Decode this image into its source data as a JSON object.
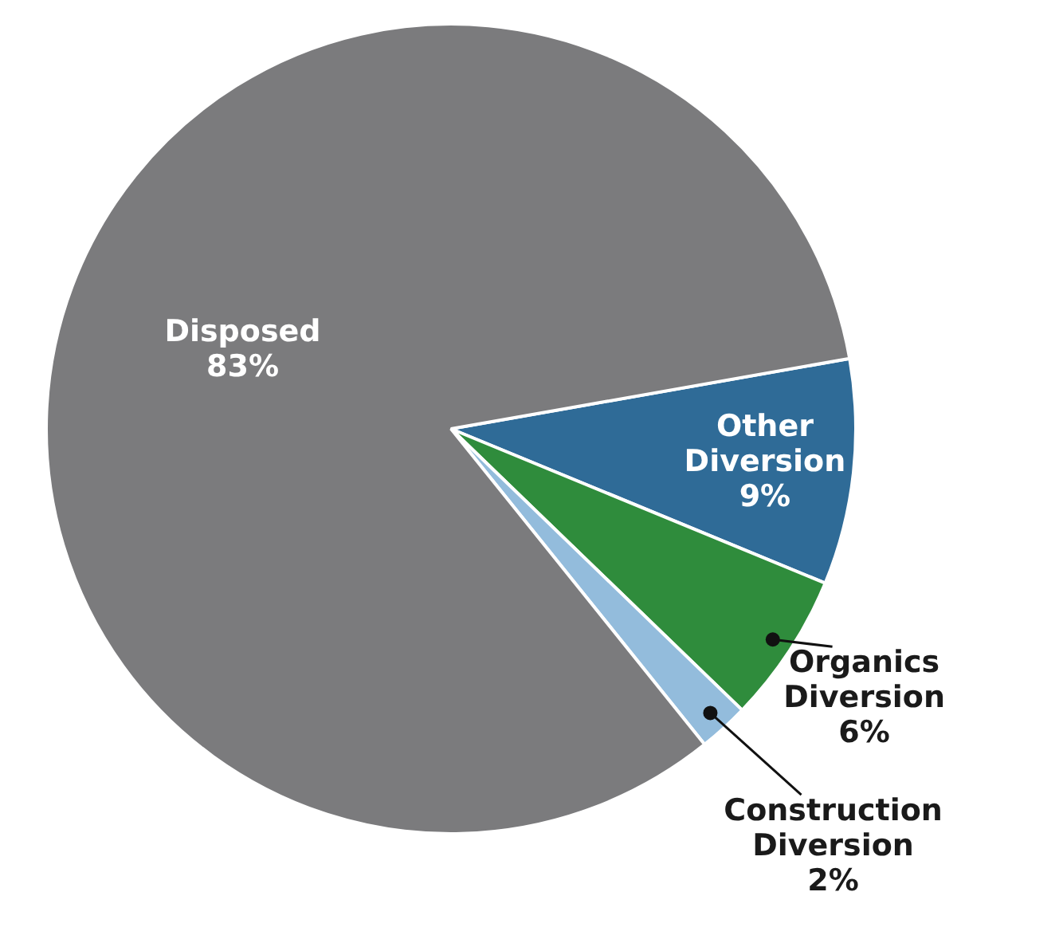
{
  "chart_data": {
    "type": "pie",
    "categories": [
      "Other Diversion",
      "Organics Diversion",
      "Construction Diversion",
      "Disposed"
    ],
    "values": [
      9,
      6,
      2,
      83
    ],
    "colors": [
      "#2f6b97",
      "#2f8c3c",
      "#93bcdc",
      "#7b7b7d"
    ],
    "value_labels": [
      "9%",
      "6%",
      "2%",
      "83%"
    ],
    "legend": false
  }
}
